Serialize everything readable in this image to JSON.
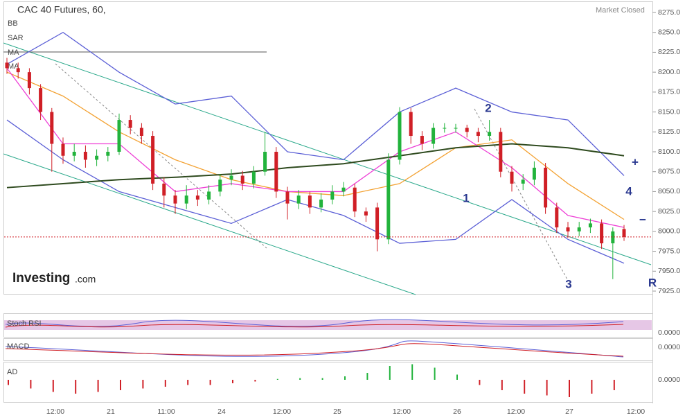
{
  "chart_data": {
    "type": "candlestick",
    "title": "CAC 40 Futures, 60,",
    "status": "Market Closed",
    "logo": "Investing",
    "logo_suffix": ".com",
    "indicators": [
      "BB",
      "SAR",
      "MA",
      "MA"
    ],
    "panels": [
      "Stoch RSI",
      "MACD",
      "AD"
    ],
    "panel_value_labels": [
      "0.0000",
      "0.0000",
      "0.0000"
    ],
    "annotations": [
      "1",
      "2",
      "3",
      "4",
      "+",
      "−",
      "R"
    ],
    "x_labels": [
      "12:00",
      "21",
      "11:00",
      "24",
      "12:00",
      "25",
      "12:00",
      "26",
      "12:00",
      "27",
      "12:00"
    ],
    "up_color": "#22b33c",
    "down_color": "#d01f26",
    "open": [
      8212,
      8205,
      8200,
      8180,
      8150,
      8110,
      8095,
      8100,
      8090,
      8095,
      8100,
      8140,
      8130,
      8120,
      8060,
      8045,
      8035,
      8045,
      8040,
      8050,
      8065,
      8070,
      8060,
      8075,
      8100,
      8050,
      8035,
      8045,
      8030,
      8040,
      8050,
      8055,
      8025,
      8030,
      7990,
      8090,
      8150,
      8120,
      8110,
      8130,
      8130,
      8130,
      8125,
      8120,
      8125,
      8075,
      8060,
      8065,
      8080,
      8030,
      8005,
      8000,
      8005,
      8010,
      7985,
      8003
    ],
    "high": [
      8218,
      8212,
      8205,
      8185,
      8155,
      8118,
      8110,
      8108,
      8103,
      8106,
      8148,
      8146,
      8136,
      8126,
      8068,
      8052,
      8058,
      8052,
      8058,
      8072,
      8078,
      8076,
      8082,
      8125,
      8106,
      8056,
      8052,
      8050,
      8048,
      8058,
      8062,
      8060,
      8030,
      8036,
      8098,
      8156,
      8155,
      8126,
      8136,
      8136,
      8135,
      8134,
      8130,
      8140,
      8130,
      8082,
      8072,
      8088,
      8086,
      8036,
      8012,
      8012,
      8016,
      8015,
      8005,
      8008
    ],
    "low": [
      8198,
      8192,
      8172,
      8140,
      8075,
      8085,
      8088,
      8080,
      8082,
      8088,
      8096,
      8122,
      8110,
      8052,
      8030,
      8022,
      8028,
      8032,
      8034,
      8044,
      8058,
      8052,
      8054,
      8070,
      8042,
      8015,
      8028,
      8022,
      8024,
      8034,
      8044,
      8018,
      8012,
      7975,
      7984,
      8084,
      8110,
      8102,
      8104,
      8124,
      8124,
      8118,
      8112,
      8114,
      8068,
      8050,
      8052,
      8058,
      8022,
      7998,
      7992,
      7994,
      7998,
      7978,
      7940,
      7988
    ],
    "close": [
      8205,
      8200,
      8180,
      8150,
      8110,
      8095,
      8100,
      8090,
      8095,
      8100,
      8140,
      8130,
      8120,
      8060,
      8045,
      8035,
      8045,
      8040,
      8050,
      8065,
      8070,
      8060,
      8075,
      8100,
      8050,
      8035,
      8045,
      8030,
      8040,
      8050,
      8055,
      8025,
      8020,
      7990,
      8090,
      8150,
      8120,
      8110,
      8130,
      8130,
      8130,
      8125,
      8120,
      8125,
      8075,
      8060,
      8065,
      8080,
      8030,
      8005,
      8000,
      8005,
      8010,
      7985,
      8000,
      7993
    ],
    "overlay_index": [
      0,
      5,
      10,
      15,
      20,
      25,
      30,
      35,
      40,
      45,
      50,
      55
    ],
    "overlays": [
      {
        "color": "#5b5fd6",
        "values": [
          8210,
          8250,
          8200,
          8160,
          8170,
          8100,
          8090,
          8150,
          8180,
          8150,
          8140,
          8070
        ]
      },
      {
        "color": "#5b5fd6",
        "values": [
          8140,
          8090,
          8050,
          8030,
          8010,
          8040,
          8020,
          7985,
          7990,
          8040,
          7990,
          7960
        ]
      },
      {
        "color": "#f3a233",
        "values": [
          8200,
          8170,
          8125,
          8090,
          8065,
          8050,
          8045,
          8060,
          8105,
          8115,
          8060,
          8015
        ]
      },
      {
        "color": "#ee3fd6",
        "values": [
          8205,
          8110,
          8110,
          8050,
          8060,
          8050,
          8050,
          8100,
          8125,
          8080,
          8020,
          8005
        ]
      },
      {
        "color": "#2e4a1e",
        "values": [
          8055,
          8060,
          8065,
          8068,
          8072,
          8080,
          8085,
          8095,
          8105,
          8110,
          8105,
          8095
        ]
      }
    ],
    "ad_values": [
      -0.3,
      -0.5,
      -0.7,
      -0.8,
      -0.7,
      -0.6,
      -0.5,
      -0.4,
      -0.3,
      -0.3,
      -0.2,
      -0.1,
      0.05,
      0.1,
      0.1,
      0.2,
      0.4,
      0.8,
      0.9,
      0.7,
      0.3,
      -0.3,
      -0.6,
      -0.8,
      -0.9,
      -1.0,
      -0.8,
      -0.6
    ],
    "ad_ylim": [
      -1,
      1
    ],
    "ylim": [
      7925,
      8275
    ],
    "yticks": [
      {
        "value": 7925,
        "label": "7925.0"
      },
      {
        "value": 7950,
        "label": "7950.0"
      },
      {
        "value": 7975,
        "label": "7975.0"
      },
      {
        "value": 8000,
        "label": "8000.0"
      },
      {
        "value": 8025,
        "label": "8025.0"
      },
      {
        "value": 8050,
        "label": "8050.0"
      },
      {
        "value": 8075,
        "label": "8075.0"
      },
      {
        "value": 8100,
        "label": "8100.0"
      },
      {
        "value": 8125,
        "label": "8125.0"
      },
      {
        "value": 8150,
        "label": "8150.0"
      },
      {
        "value": 8175,
        "label": "8175.0"
      },
      {
        "value": 8200,
        "label": "8200.0"
      },
      {
        "value": 8225,
        "label": "8225.0"
      },
      {
        "value": 8250,
        "label": "8250.0"
      },
      {
        "value": 8275,
        "label": "8275.0"
      }
    ]
  }
}
